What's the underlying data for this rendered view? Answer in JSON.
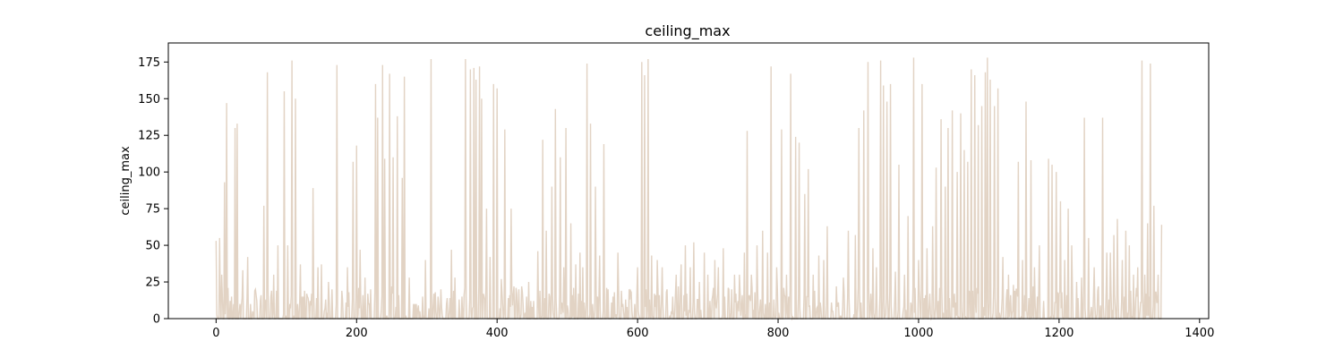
{
  "chart_data": {
    "type": "area",
    "title": "ceiling_max",
    "xlabel": "",
    "ylabel": "ceiling_max",
    "xlim": [
      -68,
      1413
    ],
    "ylim": [
      0,
      188
    ],
    "x_ticks": [
      0,
      200,
      400,
      600,
      800,
      1000,
      1200,
      1400
    ],
    "y_ticks": [
      0,
      25,
      50,
      75,
      100,
      125,
      150,
      175
    ],
    "grid": false,
    "legend": "none",
    "line_color": "#e2d3c4",
    "fill_color": "#efe6dc",
    "x_count": 1347,
    "peaks": [
      [
        0,
        53
      ],
      [
        5,
        55
      ],
      [
        8,
        30
      ],
      [
        12,
        93
      ],
      [
        15,
        147
      ],
      [
        20,
        12
      ],
      [
        27,
        130
      ],
      [
        30,
        133
      ],
      [
        38,
        33
      ],
      [
        45,
        42
      ],
      [
        52,
        5
      ],
      [
        63,
        12
      ],
      [
        68,
        77
      ],
      [
        73,
        168
      ],
      [
        82,
        30
      ],
      [
        88,
        50
      ],
      [
        97,
        155
      ],
      [
        102,
        50
      ],
      [
        108,
        176
      ],
      [
        113,
        150
      ],
      [
        120,
        37
      ],
      [
        130,
        15
      ],
      [
        138,
        89
      ],
      [
        145,
        35
      ],
      [
        150,
        37
      ],
      [
        160,
        25
      ],
      [
        165,
        20
      ],
      [
        172,
        173
      ],
      [
        180,
        13
      ],
      [
        187,
        35
      ],
      [
        195,
        107
      ],
      [
        200,
        118
      ],
      [
        205,
        47
      ],
      [
        212,
        28
      ],
      [
        220,
        20
      ],
      [
        227,
        160
      ],
      [
        230,
        137
      ],
      [
        237,
        173
      ],
      [
        240,
        109
      ],
      [
        247,
        167
      ],
      [
        252,
        110
      ],
      [
        258,
        138
      ],
      [
        265,
        96
      ],
      [
        268,
        165
      ],
      [
        275,
        28
      ],
      [
        283,
        10
      ],
      [
        290,
        5
      ],
      [
        298,
        40
      ],
      [
        306,
        177
      ],
      [
        313,
        5
      ],
      [
        320,
        20
      ],
      [
        328,
        10
      ],
      [
        335,
        47
      ],
      [
        340,
        28
      ],
      [
        350,
        15
      ],
      [
        355,
        177
      ],
      [
        362,
        170
      ],
      [
        367,
        171
      ],
      [
        370,
        163
      ],
      [
        375,
        172
      ],
      [
        378,
        150
      ],
      [
        385,
        75
      ],
      [
        390,
        42
      ],
      [
        395,
        160
      ],
      [
        400,
        157
      ],
      [
        406,
        27
      ],
      [
        411,
        129
      ],
      [
        420,
        75
      ],
      [
        428,
        17
      ],
      [
        435,
        22
      ],
      [
        445,
        25
      ],
      [
        452,
        12
      ],
      [
        458,
        46
      ],
      [
        465,
        122
      ],
      [
        470,
        60
      ],
      [
        478,
        90
      ],
      [
        483,
        143
      ],
      [
        490,
        110
      ],
      [
        495,
        35
      ],
      [
        498,
        130
      ],
      [
        505,
        65
      ],
      [
        512,
        37
      ],
      [
        518,
        45
      ],
      [
        522,
        35
      ],
      [
        528,
        174
      ],
      [
        533,
        133
      ],
      [
        540,
        90
      ],
      [
        546,
        43
      ],
      [
        552,
        119
      ],
      [
        558,
        20
      ],
      [
        565,
        15
      ],
      [
        572,
        45
      ],
      [
        580,
        5
      ],
      [
        588,
        20
      ],
      [
        596,
        10
      ],
      [
        600,
        35
      ],
      [
        606,
        175
      ],
      [
        610,
        166
      ],
      [
        615,
        177
      ],
      [
        620,
        43
      ],
      [
        628,
        40
      ],
      [
        635,
        35
      ],
      [
        642,
        20
      ],
      [
        650,
        15
      ],
      [
        655,
        30
      ],
      [
        662,
        37
      ],
      [
        668,
        50
      ],
      [
        675,
        35
      ],
      [
        680,
        52
      ],
      [
        688,
        25
      ],
      [
        695,
        45
      ],
      [
        700,
        30
      ],
      [
        710,
        40
      ],
      [
        715,
        35
      ],
      [
        722,
        48
      ],
      [
        730,
        20
      ],
      [
        738,
        30
      ],
      [
        745,
        30
      ],
      [
        752,
        45
      ],
      [
        756,
        128
      ],
      [
        762,
        30
      ],
      [
        770,
        50
      ],
      [
        778,
        60
      ],
      [
        785,
        45
      ],
      [
        790,
        172
      ],
      [
        798,
        35
      ],
      [
        805,
        129
      ],
      [
        812,
        30
      ],
      [
        818,
        167
      ],
      [
        825,
        124
      ],
      [
        830,
        120
      ],
      [
        838,
        85
      ],
      [
        843,
        102
      ],
      [
        850,
        30
      ],
      [
        858,
        43
      ],
      [
        865,
        40
      ],
      [
        870,
        63
      ],
      [
        878,
        5
      ],
      [
        885,
        10
      ],
      [
        893,
        28
      ],
      [
        900,
        60
      ],
      [
        910,
        57
      ],
      [
        915,
        130
      ],
      [
        922,
        142
      ],
      [
        928,
        175
      ],
      [
        935,
        48
      ],
      [
        940,
        35
      ],
      [
        946,
        176
      ],
      [
        950,
        159
      ],
      [
        955,
        148
      ],
      [
        960,
        160
      ],
      [
        967,
        32
      ],
      [
        972,
        105
      ],
      [
        980,
        30
      ],
      [
        985,
        70
      ],
      [
        993,
        178
      ],
      [
        1000,
        40
      ],
      [
        1005,
        160
      ],
      [
        1012,
        48
      ],
      [
        1020,
        63
      ],
      [
        1025,
        103
      ],
      [
        1032,
        136
      ],
      [
        1038,
        90
      ],
      [
        1042,
        130
      ],
      [
        1048,
        142
      ],
      [
        1055,
        100
      ],
      [
        1060,
        140
      ],
      [
        1065,
        115
      ],
      [
        1070,
        107
      ],
      [
        1075,
        170
      ],
      [
        1080,
        166
      ],
      [
        1085,
        132
      ],
      [
        1090,
        145
      ],
      [
        1095,
        168
      ],
      [
        1098,
        178
      ],
      [
        1102,
        163
      ],
      [
        1108,
        145
      ],
      [
        1113,
        157
      ],
      [
        1120,
        42
      ],
      [
        1128,
        30
      ],
      [
        1135,
        23
      ],
      [
        1142,
        107
      ],
      [
        1148,
        40
      ],
      [
        1153,
        148
      ],
      [
        1160,
        108
      ],
      [
        1165,
        35
      ],
      [
        1172,
        50
      ],
      [
        1178,
        12
      ],
      [
        1185,
        109
      ],
      [
        1190,
        105
      ],
      [
        1196,
        100
      ],
      [
        1202,
        80
      ],
      [
        1208,
        40
      ],
      [
        1213,
        75
      ],
      [
        1218,
        50
      ],
      [
        1225,
        25
      ],
      [
        1232,
        28
      ],
      [
        1236,
        137
      ],
      [
        1242,
        55
      ],
      [
        1250,
        35
      ],
      [
        1256,
        22
      ],
      [
        1262,
        137
      ],
      [
        1268,
        45
      ],
      [
        1273,
        45
      ],
      [
        1278,
        57
      ],
      [
        1283,
        68
      ],
      [
        1290,
        40
      ],
      [
        1295,
        60
      ],
      [
        1300,
        50
      ],
      [
        1306,
        30
      ],
      [
        1312,
        35
      ],
      [
        1318,
        176
      ],
      [
        1322,
        30
      ],
      [
        1326,
        65
      ],
      [
        1330,
        174
      ],
      [
        1335,
        77
      ],
      [
        1341,
        30
      ],
      [
        1346,
        64
      ]
    ]
  }
}
